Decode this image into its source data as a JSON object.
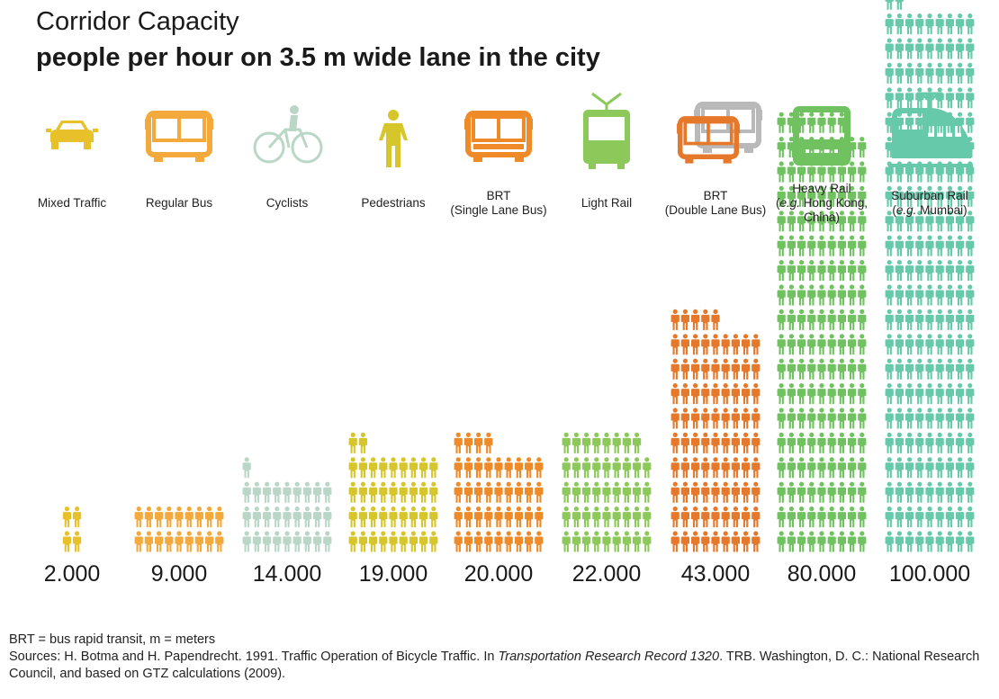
{
  "chart_data": {
    "type": "pictograph",
    "title": "Corridor Capacity",
    "subtitle": "people per hour on 3.5 m wide lane in the city",
    "unit": "people per hour",
    "people_per_figure": 500,
    "categories": [
      {
        "key": "mixed-traffic",
        "label_lines": [
          "Mixed Traffic"
        ],
        "value": 2000,
        "value_label": "2.000",
        "color": "#e8c12a",
        "icon": "car-icon"
      },
      {
        "key": "regular-bus",
        "label_lines": [
          "Regular Bus"
        ],
        "value": 9000,
        "value_label": "9.000",
        "color": "#f3a93c",
        "icon": "bus-icon"
      },
      {
        "key": "cyclists",
        "label_lines": [
          "Cyclists"
        ],
        "value": 14000,
        "value_label": "14.000",
        "color": "#b9d6c6",
        "icon": "cyclist-icon"
      },
      {
        "key": "pedestrians",
        "label_lines": [
          "Pedestrians"
        ],
        "value": 19000,
        "value_label": "19.000",
        "color": "#d6c62c",
        "icon": "pedestrian-icon"
      },
      {
        "key": "brt-single",
        "label_lines": [
          "BRT",
          "(Single Lane Bus)"
        ],
        "value": 20000,
        "value_label": "20.000",
        "color": "#ee8a27",
        "icon": "brt-bus-icon"
      },
      {
        "key": "light-rail",
        "label_lines": [
          "Light Rail"
        ],
        "value": 22000,
        "value_label": "22.000",
        "color": "#8cc95a",
        "icon": "light-rail-icon"
      },
      {
        "key": "brt-double",
        "label_lines": [
          "BRT",
          "(Double Lane Bus)"
        ],
        "value": 43000,
        "value_label": "43.000",
        "color": "#e5782a",
        "icon": "double-bus-icon"
      },
      {
        "key": "heavy-rail",
        "label_lines": [
          "Heavy Rail",
          "(e.g. Hong Kong,",
          "China)"
        ],
        "value": 80000,
        "value_label": "80.000",
        "color": "#6fc25f",
        "icon": "heavy-rail-icon"
      },
      {
        "key": "suburban-rail",
        "label_lines": [
          "Suburban Rail",
          "(e.g. Mumbai)"
        ],
        "value": 100000,
        "value_label": "100.000",
        "color": "#66c9a9",
        "icon": "suburban-train-icon"
      }
    ]
  },
  "notes": {
    "abbrev": "BRT = bus rapid transit, m = meters",
    "source_prefix": "Sources: H. Botma and H. Papendrecht. 1991. Traffic Operation of Bicycle Traffic. In ",
    "source_title": "Transportation Research Record 1320",
    "source_suffix": ". TRB. Washington, D. C.: National Research Council, and based on GTZ calculations (2009)."
  }
}
